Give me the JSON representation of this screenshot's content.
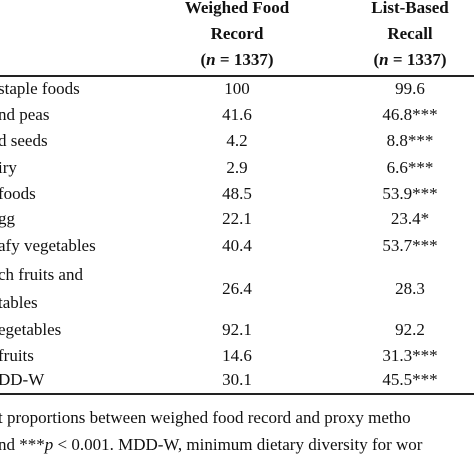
{
  "table": {
    "columns": [
      {
        "lines": [
          "Weighed Food",
          "Record"
        ],
        "n": [
          "(",
          "n",
          " = 1337)"
        ]
      },
      {
        "lines": [
          "List-Based",
          "Recall"
        ],
        "n": [
          "(",
          "n",
          " = 1337)"
        ]
      }
    ],
    "rows": [
      {
        "label": [
          "staple foods"
        ],
        "values": [
          "100",
          "99.6"
        ]
      },
      {
        "label": [
          "nd peas"
        ],
        "values": [
          "41.6",
          "46.8***"
        ]
      },
      {
        "label": [
          "d seeds"
        ],
        "values": [
          "4.2",
          "8.8***"
        ]
      },
      {
        "label": [
          "iry"
        ],
        "values": [
          "2.9",
          "6.6***"
        ]
      },
      {
        "label": [
          "foods"
        ],
        "values": [
          "48.5",
          "53.9***"
        ]
      },
      {
        "label": [
          "gg"
        ],
        "values": [
          "22.1",
          "23.4*"
        ]
      },
      {
        "label": [
          "afy vegetables"
        ],
        "values": [
          "40.4",
          "53.7***"
        ]
      },
      {
        "label": [
          "ch fruits and",
          "tables"
        ],
        "values": [
          "26.4",
          "28.3"
        ]
      },
      {
        "label": [
          "egetables"
        ],
        "values": [
          "92.1",
          "92.2"
        ]
      },
      {
        "label": [
          "fruits"
        ],
        "values": [
          "14.6",
          "31.3***"
        ]
      },
      {
        "label": [
          "DD-W"
        ],
        "values": [
          "30.1",
          "45.5***"
        ]
      }
    ]
  },
  "footnote": [
    [
      "t proportions between weighed food record and proxy metho"
    ],
    [
      "nd ***",
      "p",
      " < 0.001. MDD-W, minimum dietary diversity for wor"
    ]
  ]
}
